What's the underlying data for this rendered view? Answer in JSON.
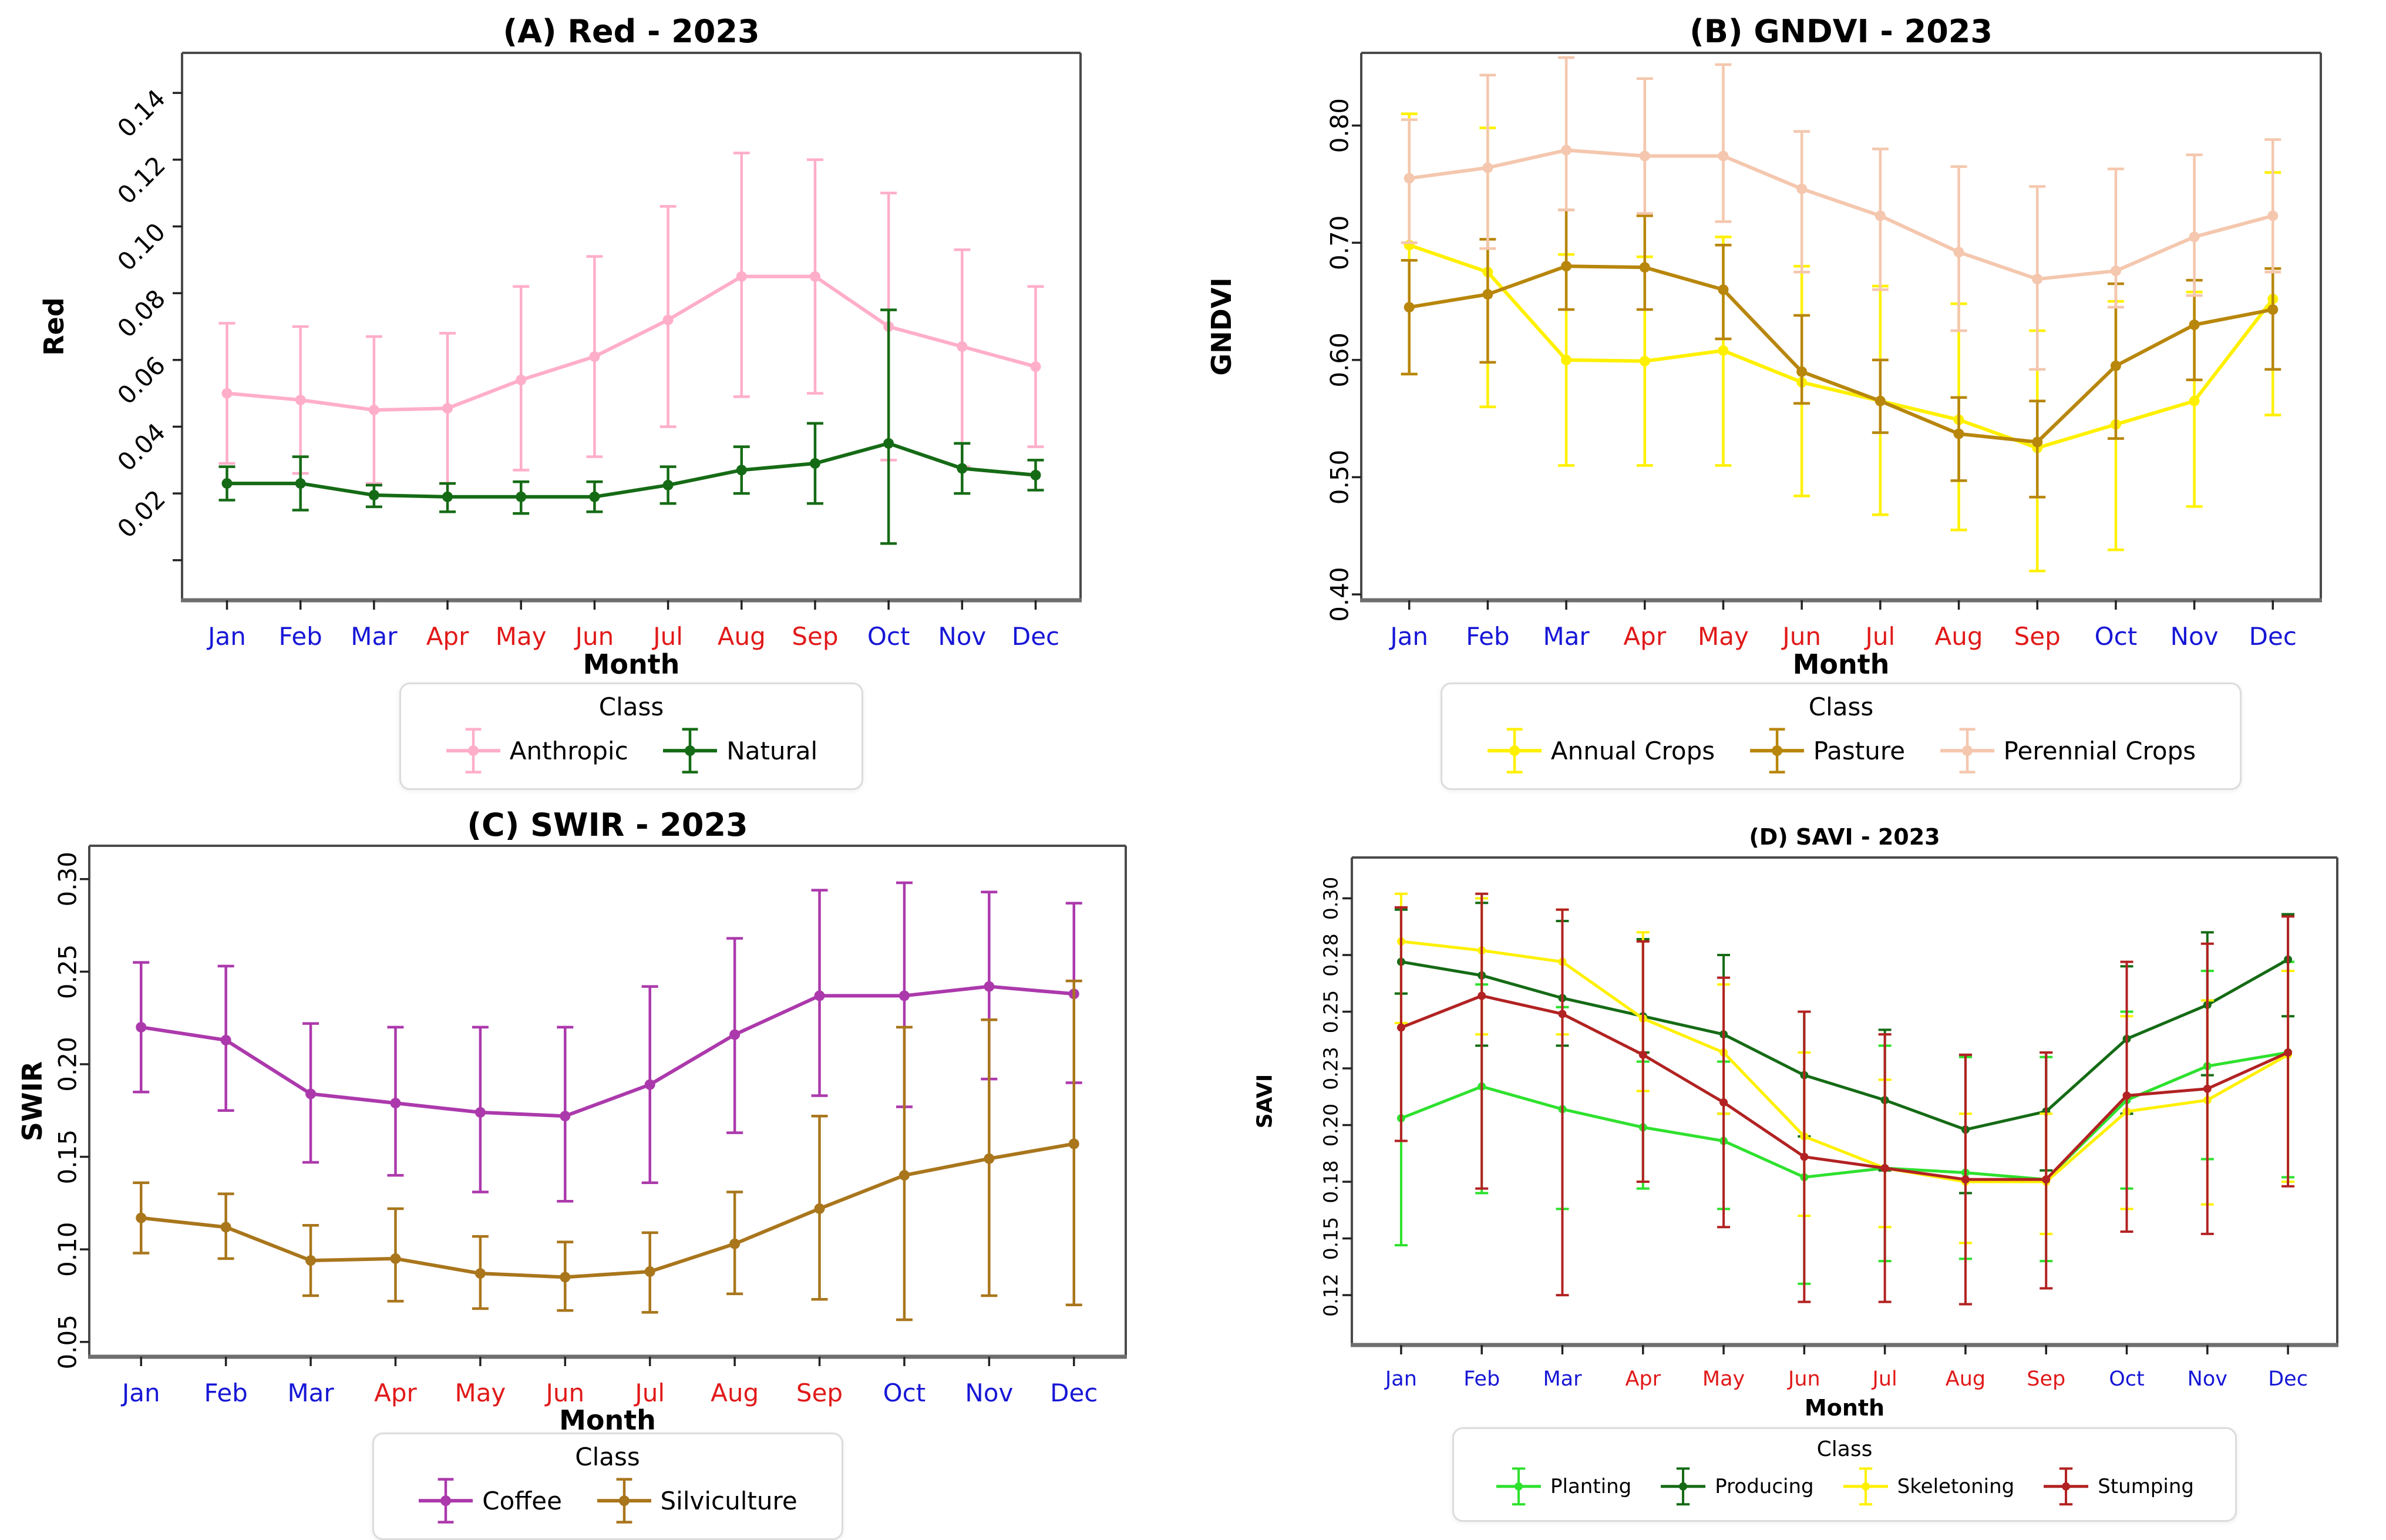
{
  "figure": {
    "background": "#ffffff",
    "month_blue": "#1717d6",
    "month_red": "#e11919"
  },
  "chart_data": [
    {
      "type": "line",
      "title": "(A) Red - 2023",
      "xlabel": "Month",
      "ylabel": "Red",
      "legend_title": "Class",
      "legend_position": "bottom",
      "grid": false,
      "x_categories": [
        "Jan",
        "Feb",
        "Mar",
        "Apr",
        "May",
        "Jun",
        "Jul",
        "Aug",
        "Sep",
        "Oct",
        "Nov",
        "Dec"
      ],
      "x_tick_colors": [
        "#1717d6",
        "#1717d6",
        "#1717d6",
        "#e11919",
        "#e11919",
        "#e11919",
        "#e11919",
        "#e11919",
        "#e11919",
        "#1717d6",
        "#1717d6",
        "#1717d6"
      ],
      "ylim": [
        -0.012,
        0.152
      ],
      "yticks": [
        {
          "v": 0.0,
          "label": ""
        },
        {
          "v": 0.02,
          "label": "0.02"
        },
        {
          "v": 0.04,
          "label": "0.04"
        },
        {
          "v": 0.06,
          "label": "0.06"
        },
        {
          "v": 0.08,
          "label": "0.08"
        },
        {
          "v": 0.1,
          "label": "0.10"
        },
        {
          "v": 0.12,
          "label": "0.12"
        },
        {
          "v": 0.14,
          "label": "0.14"
        }
      ],
      "ytick_rotation": 45,
      "series": [
        {
          "name": "Anthropic",
          "color": "#ffaec9",
          "values": [
            0.05,
            0.048,
            0.045,
            0.0455,
            0.054,
            0.061,
            0.072,
            0.085,
            0.085,
            0.07,
            0.064,
            0.058
          ],
          "err_low": [
            0.029,
            0.026,
            0.023,
            0.023,
            0.027,
            0.031,
            0.04,
            0.049,
            0.05,
            0.03,
            0.028,
            0.034
          ],
          "err_high": [
            0.071,
            0.07,
            0.067,
            0.068,
            0.082,
            0.091,
            0.106,
            0.122,
            0.12,
            0.11,
            0.093,
            0.082
          ]
        },
        {
          "name": "Natural",
          "color": "#156b15",
          "values": [
            0.023,
            0.023,
            0.0195,
            0.019,
            0.019,
            0.019,
            0.0225,
            0.027,
            0.029,
            0.035,
            0.0275,
            0.0255
          ],
          "err_low": [
            0.018,
            0.015,
            0.016,
            0.0145,
            0.014,
            0.0145,
            0.017,
            0.02,
            0.017,
            0.005,
            0.02,
            0.021
          ],
          "err_high": [
            0.028,
            0.031,
            0.0225,
            0.023,
            0.0235,
            0.0235,
            0.028,
            0.034,
            0.041,
            0.075,
            0.035,
            0.03
          ]
        }
      ]
    },
    {
      "type": "line",
      "title": "(B) GNDVI - 2023",
      "xlabel": "Month",
      "ylabel": "GNDVI",
      "legend_title": "Class",
      "legend_position": "bottom",
      "grid": false,
      "x_categories": [
        "Jan",
        "Feb",
        "Mar",
        "Apr",
        "May",
        "Jun",
        "Jul",
        "Aug",
        "Sep",
        "Oct",
        "Nov",
        "Dec"
      ],
      "x_tick_colors": [
        "#1717d6",
        "#1717d6",
        "#1717d6",
        "#e11919",
        "#e11919",
        "#e11919",
        "#e11919",
        "#e11919",
        "#e11919",
        "#1717d6",
        "#1717d6",
        "#1717d6"
      ],
      "ylim": [
        0.395,
        0.862
      ],
      "yticks": [
        {
          "v": 0.4,
          "label": "0.40"
        },
        {
          "v": 0.5,
          "label": "0.50"
        },
        {
          "v": 0.6,
          "label": "0.60"
        },
        {
          "v": 0.7,
          "label": "0.70"
        },
        {
          "v": 0.8,
          "label": "0.80"
        }
      ],
      "ytick_rotation": 90,
      "series": [
        {
          "name": "Annual Crops",
          "color": "#fff000",
          "values": [
            0.698,
            0.675,
            0.6,
            0.599,
            0.608,
            0.581,
            0.565,
            0.549,
            0.525,
            0.545,
            0.565,
            0.652
          ],
          "err_low": [
            0.588,
            0.56,
            0.51,
            0.51,
            0.51,
            0.484,
            0.468,
            0.455,
            0.42,
            0.438,
            0.475,
            0.553
          ],
          "err_high": [
            0.81,
            0.798,
            0.69,
            0.688,
            0.705,
            0.68,
            0.663,
            0.648,
            0.625,
            0.65,
            0.658,
            0.76
          ]
        },
        {
          "name": "Pasture",
          "color": "#b8860b",
          "values": [
            0.645,
            0.656,
            0.68,
            0.679,
            0.66,
            0.59,
            0.565,
            0.537,
            0.53,
            0.595,
            0.63,
            0.643
          ],
          "err_low": [
            0.588,
            0.598,
            0.643,
            0.643,
            0.618,
            0.563,
            0.538,
            0.497,
            0.483,
            0.533,
            0.583,
            0.592
          ],
          "err_high": [
            0.685,
            0.703,
            0.728,
            0.723,
            0.698,
            0.638,
            0.6,
            0.568,
            0.565,
            0.665,
            0.668,
            0.678
          ]
        },
        {
          "name": "Perennial Crops",
          "color": "#f4c7ae",
          "values": [
            0.755,
            0.764,
            0.779,
            0.774,
            0.774,
            0.746,
            0.723,
            0.692,
            0.669,
            0.676,
            0.705,
            0.723
          ],
          "err_low": [
            0.7,
            0.695,
            0.728,
            0.725,
            0.718,
            0.675,
            0.66,
            0.625,
            0.592,
            0.645,
            0.655,
            0.675
          ],
          "err_high": [
            0.805,
            0.843,
            0.858,
            0.84,
            0.852,
            0.795,
            0.78,
            0.765,
            0.748,
            0.763,
            0.775,
            0.788
          ]
        }
      ]
    },
    {
      "type": "line",
      "title": "(C) SWIR - 2023",
      "xlabel": "Month",
      "ylabel": "SWIR",
      "legend_title": "Class",
      "legend_position": "bottom",
      "grid": false,
      "x_categories": [
        "Jan",
        "Feb",
        "Mar",
        "Apr",
        "May",
        "Jun",
        "Jul",
        "Aug",
        "Sep",
        "Oct",
        "Nov",
        "Dec"
      ],
      "x_tick_colors": [
        "#1717d6",
        "#1717d6",
        "#1717d6",
        "#e11919",
        "#e11919",
        "#e11919",
        "#e11919",
        "#e11919",
        "#e11919",
        "#1717d6",
        "#1717d6",
        "#1717d6"
      ],
      "ylim": [
        0.042,
        0.318
      ],
      "yticks": [
        {
          "v": 0.05,
          "label": "0.05"
        },
        {
          "v": 0.1,
          "label": "0.10"
        },
        {
          "v": 0.15,
          "label": "0.15"
        },
        {
          "v": 0.2,
          "label": "0.20"
        },
        {
          "v": 0.25,
          "label": "0.25"
        },
        {
          "v": 0.3,
          "label": "0.30"
        }
      ],
      "ytick_rotation": 90,
      "series": [
        {
          "name": "Coffee",
          "color": "#ac39ac",
          "values": [
            0.22,
            0.213,
            0.184,
            0.179,
            0.174,
            0.172,
            0.189,
            0.216,
            0.237,
            0.237,
            0.242,
            0.238
          ],
          "err_low": [
            0.185,
            0.175,
            0.147,
            0.14,
            0.131,
            0.126,
            0.136,
            0.163,
            0.183,
            0.177,
            0.192,
            0.19
          ],
          "err_high": [
            0.255,
            0.253,
            0.222,
            0.22,
            0.22,
            0.22,
            0.242,
            0.268,
            0.294,
            0.298,
            0.293,
            0.287
          ]
        },
        {
          "name": "Silviculture",
          "color": "#a9761c",
          "values": [
            0.117,
            0.112,
            0.094,
            0.095,
            0.087,
            0.085,
            0.088,
            0.103,
            0.122,
            0.14,
            0.149,
            0.157
          ],
          "err_low": [
            0.098,
            0.095,
            0.075,
            0.072,
            0.068,
            0.067,
            0.066,
            0.076,
            0.073,
            0.062,
            0.075,
            0.07
          ],
          "err_high": [
            0.136,
            0.13,
            0.113,
            0.122,
            0.107,
            0.104,
            0.109,
            0.131,
            0.172,
            0.22,
            0.224,
            0.245
          ]
        }
      ]
    },
    {
      "type": "line",
      "title": "(D) SAVI - 2023",
      "xlabel": "Month",
      "ylabel": "SAVI",
      "legend_title": "Class",
      "legend_position": "bottom",
      "grid": false,
      "x_categories": [
        "Jan",
        "Feb",
        "Mar",
        "Apr",
        "May",
        "Jun",
        "Jul",
        "Aug",
        "Sep",
        "Oct",
        "Nov",
        "Dec"
      ],
      "x_tick_colors": [
        "#1717d6",
        "#1717d6",
        "#1717d6",
        "#e11919",
        "#e11919",
        "#e11919",
        "#e11919",
        "#e11919",
        "#e11919",
        "#1717d6",
        "#1717d6",
        "#1717d6"
      ],
      "ylim": [
        0.103,
        0.318
      ],
      "yticks": [
        {
          "v": 0.125,
          "label": "0.12"
        },
        {
          "v": 0.15,
          "label": "0.15"
        },
        {
          "v": 0.175,
          "label": "0.18"
        },
        {
          "v": 0.2,
          "label": "0.20"
        },
        {
          "v": 0.225,
          "label": "0.23"
        },
        {
          "v": 0.25,
          "label": "0.25"
        },
        {
          "v": 0.275,
          "label": "0.28"
        },
        {
          "v": 0.3,
          "label": "0.30"
        }
      ],
      "ytick_rotation": 90,
      "series": [
        {
          "name": "Planting",
          "color": "#2ee12e",
          "values": [
            0.203,
            0.217,
            0.207,
            0.199,
            0.193,
            0.177,
            0.181,
            0.179,
            0.176,
            0.211,
            0.226,
            0.232
          ],
          "err_low": [
            0.147,
            0.17,
            0.163,
            0.172,
            0.163,
            0.13,
            0.14,
            0.141,
            0.14,
            0.172,
            0.185,
            0.177
          ],
          "err_high": [
            0.258,
            0.262,
            0.252,
            0.228,
            0.228,
            0.25,
            0.235,
            0.23,
            0.23,
            0.25,
            0.268,
            0.272
          ]
        },
        {
          "name": "Producing",
          "color": "#156b15",
          "values": [
            0.272,
            0.266,
            0.256,
            0.248,
            0.24,
            0.222,
            0.211,
            0.198,
            0.206,
            0.238,
            0.253,
            0.273
          ],
          "err_low": [
            0.258,
            0.235,
            0.235,
            0.232,
            0.205,
            0.195,
            0.18,
            0.17,
            0.18,
            0.205,
            0.222,
            0.248
          ],
          "err_high": [
            0.295,
            0.298,
            0.29,
            0.282,
            0.275,
            0.25,
            0.242,
            0.231,
            0.232,
            0.27,
            0.285,
            0.293
          ]
        },
        {
          "name": "Skeletoning",
          "color": "#fff000",
          "values": [
            0.281,
            0.277,
            0.272,
            0.247,
            0.232,
            0.195,
            0.181,
            0.175,
            0.175,
            0.206,
            0.211,
            0.231
          ],
          "err_low": [
            0.245,
            0.24,
            0.24,
            0.215,
            0.205,
            0.16,
            0.155,
            0.148,
            0.152,
            0.163,
            0.165,
            0.175
          ],
          "err_high": [
            0.302,
            0.3,
            0.295,
            0.285,
            0.262,
            0.232,
            0.22,
            0.205,
            0.205,
            0.248,
            0.255,
            0.268
          ]
        },
        {
          "name": "Stumping",
          "color": "#b22222",
          "values": [
            0.243,
            0.257,
            0.249,
            0.231,
            0.21,
            0.186,
            0.181,
            0.176,
            0.176,
            0.213,
            0.216,
            0.232
          ],
          "err_low": [
            0.193,
            0.172,
            0.125,
            0.175,
            0.155,
            0.122,
            0.122,
            0.121,
            0.128,
            0.153,
            0.152,
            0.173
          ],
          "err_high": [
            0.296,
            0.302,
            0.295,
            0.281,
            0.265,
            0.25,
            0.24,
            0.231,
            0.232,
            0.272,
            0.28,
            0.292
          ]
        }
      ]
    }
  ]
}
